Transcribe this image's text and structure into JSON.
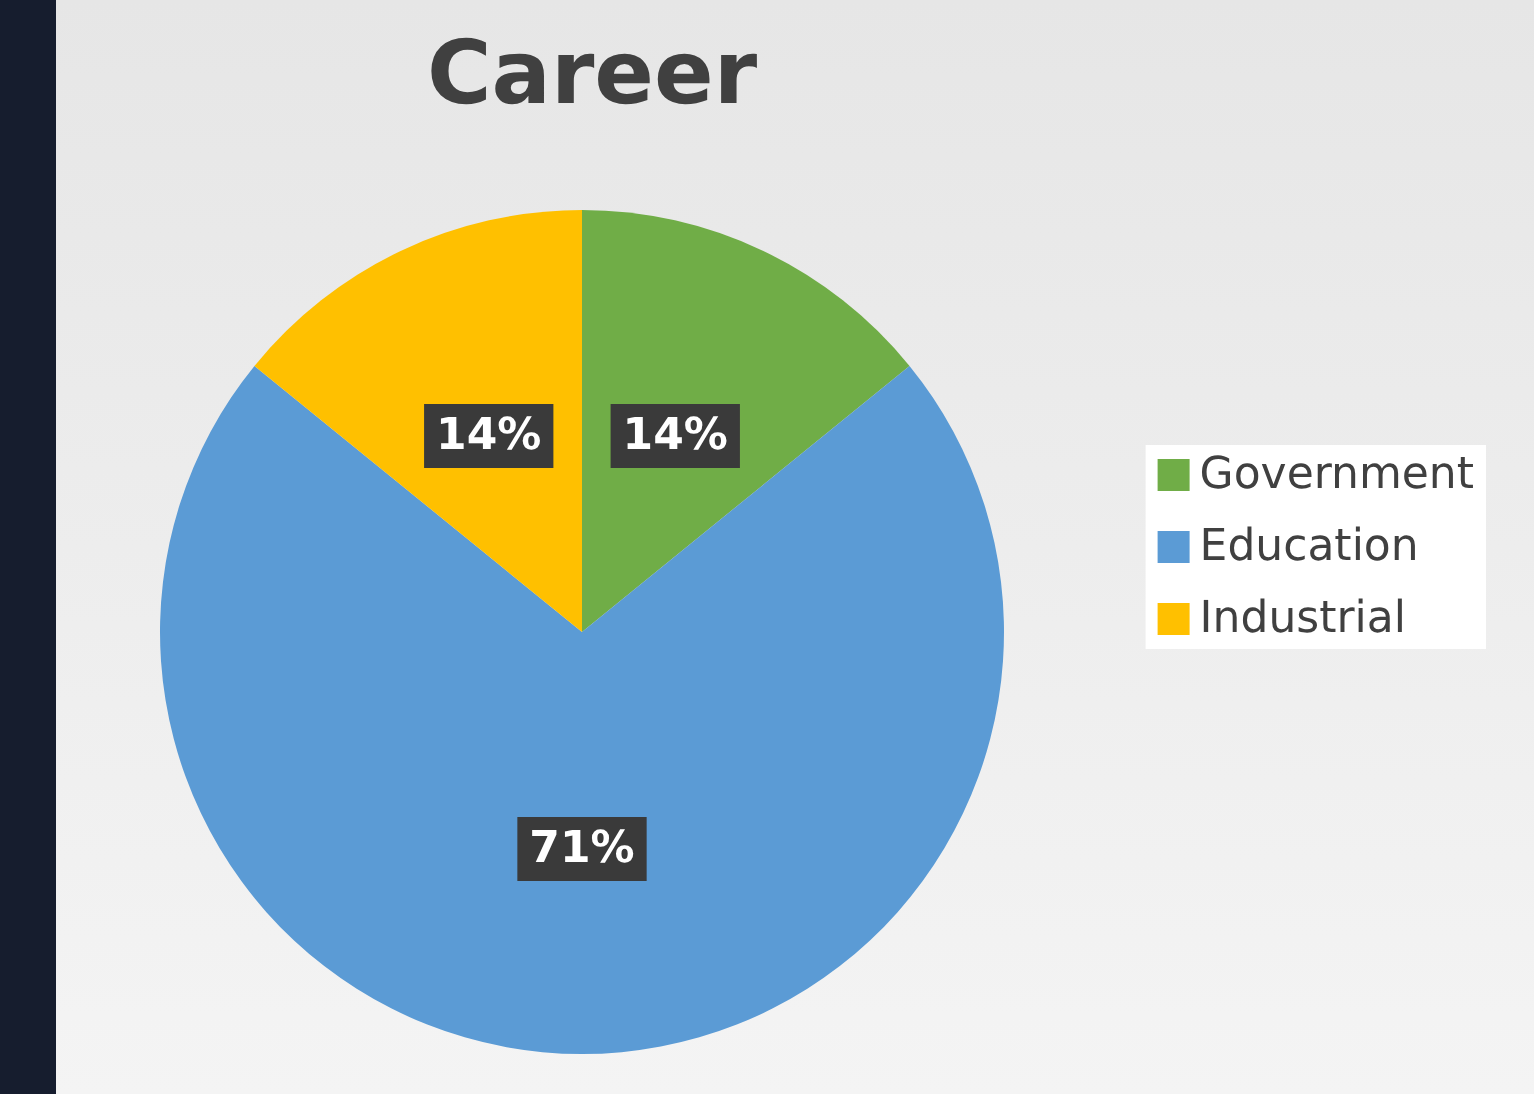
{
  "chart_data": {
    "type": "pie",
    "title": "Career",
    "categories": [
      "Government",
      "Education",
      "Industrial"
    ],
    "values": [
      14,
      71,
      14
    ],
    "value_labels": [
      "14%",
      "71%",
      "14%"
    ],
    "colors": [
      "#70ad47",
      "#5b9bd5",
      "#ffc000"
    ],
    "legend": "right"
  }
}
